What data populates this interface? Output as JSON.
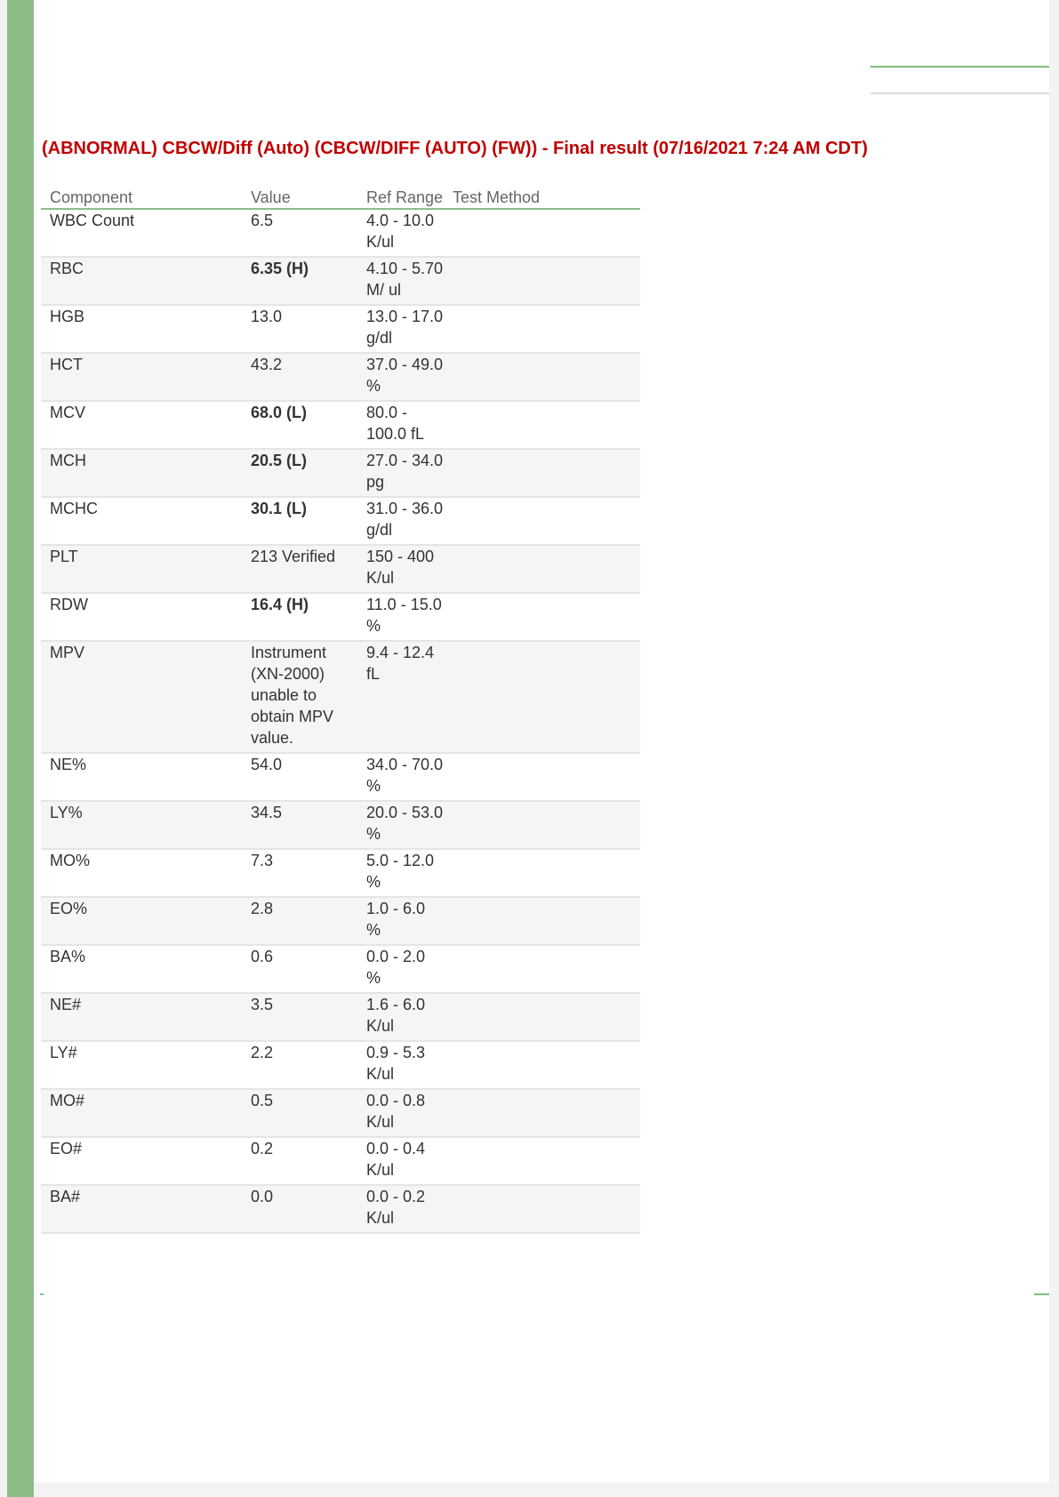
{
  "result_title": "(ABNORMAL) CBCW/Diff (Auto) (CBCW/DIFF (AUTO) (FW)) - Final result (07/16/2021 7:24 AM CDT)",
  "headers": {
    "component": "Component",
    "value": "Value",
    "ref_range": "Ref Range",
    "test_method": "Test Method"
  },
  "rows": [
    {
      "component": "WBC Count",
      "value": "6.5",
      "ref_range": "4.0 - 10.0 K/ul",
      "abnormal": false
    },
    {
      "component": "RBC",
      "value": "6.35 (H)",
      "ref_range": "4.10 - 5.70 M/ ul",
      "abnormal": true
    },
    {
      "component": "HGB",
      "value": "13.0",
      "ref_range": "13.0 - 17.0 g/dl",
      "abnormal": false
    },
    {
      "component": "HCT",
      "value": "43.2",
      "ref_range": "37.0 - 49.0 %",
      "abnormal": false
    },
    {
      "component": "MCV",
      "value": "68.0 (L)",
      "ref_range": "80.0 - 100.0 fL",
      "abnormal": true
    },
    {
      "component": "MCH",
      "value": "20.5 (L)",
      "ref_range": "27.0 - 34.0 pg",
      "abnormal": true
    },
    {
      "component": "MCHC",
      "value": "30.1 (L)",
      "ref_range": "31.0 - 36.0 g/dl",
      "abnormal": true
    },
    {
      "component": "PLT",
      "value": "213 Verified",
      "ref_range": "150 - 400 K/ul",
      "abnormal": false
    },
    {
      "component": "RDW",
      "value": "16.4 (H)",
      "ref_range": "11.0 - 15.0 %",
      "abnormal": true
    },
    {
      "component": "MPV",
      "value": "Instrument (XN-2000) unable to obtain MPV value.",
      "ref_range": "9.4 - 12.4 fL",
      "abnormal": false
    },
    {
      "component": "NE%",
      "value": "54.0",
      "ref_range": "34.0 - 70.0 %",
      "abnormal": false
    },
    {
      "component": "LY%",
      "value": "34.5",
      "ref_range": "20.0 - 53.0 %",
      "abnormal": false
    },
    {
      "component": "MO%",
      "value": "7.3",
      "ref_range": "5.0 - 12.0 %",
      "abnormal": false
    },
    {
      "component": "EO%",
      "value": "2.8",
      "ref_range": "1.0 - 6.0 %",
      "abnormal": false
    },
    {
      "component": "BA%",
      "value": "0.6",
      "ref_range": "0.0 - 2.0 %",
      "abnormal": false
    },
    {
      "component": "NE#",
      "value": "3.5",
      "ref_range": "1.6 - 6.0 K/ul",
      "abnormal": false
    },
    {
      "component": "LY#",
      "value": "2.2",
      "ref_range": "0.9 - 5.3 K/ul",
      "abnormal": false
    },
    {
      "component": "MO#",
      "value": "0.5",
      "ref_range": "0.0 - 0.8 K/ul",
      "abnormal": false
    },
    {
      "component": "EO#",
      "value": "0.2",
      "ref_range": "0.0 - 0.4 K/ul",
      "abnormal": false
    },
    {
      "component": "BA#",
      "value": "0.0",
      "ref_range": "0.0 - 0.2 K/ul",
      "abnormal": false
    }
  ],
  "colors": {
    "abnormal_text": "#c00000",
    "accent_green": "#8cbd87",
    "row_alt": "#f4f5f4"
  }
}
